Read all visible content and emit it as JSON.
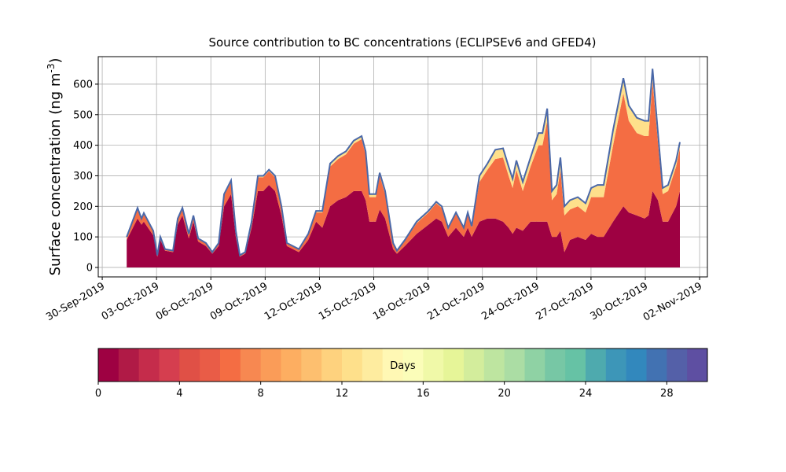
{
  "chart_data": {
    "type": "stacked_area",
    "title": "Source contribution to BC concentrations (ECLIPSEv6 and GFED4)",
    "ylabel": "Surface concentration (ng m$^{-3}$)",
    "x": [
      1.35,
      1.95,
      2.17,
      2.3,
      2.82,
      3.04,
      3.21,
      3.47,
      3.91,
      4.17,
      4.43,
      4.78,
      5.04,
      5.3,
      5.73,
      6.08,
      6.43,
      6.73,
      7.12,
      7.38,
      7.6,
      7.9,
      8.25,
      8.6,
      8.9,
      9.21,
      9.55,
      9.9,
      10.2,
      10.86,
      11.38,
      11.81,
      12.16,
      12.59,
      13.03,
      13.46,
      13.89,
      14.33,
      14.55,
      14.76,
      15.11,
      15.33,
      15.63,
      16.07,
      16.28,
      16.72,
      17.37,
      18.02,
      18.45,
      18.76,
      19.11,
      19.54,
      19.97,
      20.19,
      20.41,
      20.84,
      21.28,
      21.71,
      22.14,
      22.45,
      22.67,
      22.88,
      23.23,
      23.66,
      24.1,
      24.32,
      24.58,
      24.84,
      25.1,
      25.31,
      25.53,
      25.84,
      26.27,
      26.7,
      27.01,
      27.36,
      27.7,
      28.22,
      28.79,
      29.09,
      29.53,
      29.96,
      30.18,
      30.4,
      30.7,
      30.96,
      31.26,
      31.7,
      31.91
    ],
    "series": [
      {
        "color": "#9e0142",
        "values": [
          90,
          160,
          140,
          150,
          105,
          35,
          90,
          55,
          50,
          140,
          170,
          95,
          150,
          85,
          70,
          45,
          70,
          200,
          240,
          100,
          35,
          45,
          130,
          250,
          250,
          270,
          250,
          170,
          70,
          50,
          90,
          150,
          130,
          200,
          220,
          230,
          250,
          250,
          220,
          150,
          150,
          190,
          160,
          60,
          45,
          70,
          110,
          140,
          160,
          150,
          100,
          130,
          100,
          130,
          100,
          150,
          160,
          160,
          150,
          130,
          110,
          130,
          120,
          150,
          150,
          150,
          150,
          100,
          100,
          120,
          50,
          90,
          100,
          90,
          110,
          100,
          100,
          150,
          200,
          180,
          170,
          160,
          170,
          250,
          220,
          150,
          150,
          200,
          250
        ]
      },
      {
        "color": "#f46d43",
        "values": [
          8,
          30,
          17,
          25,
          13,
          4,
          8,
          4,
          4,
          17,
          22,
          13,
          17,
          8,
          8,
          4,
          8,
          35,
          40,
          17,
          4,
          4,
          17,
          45,
          45,
          45,
          45,
          27,
          8,
          8,
          17,
          30,
          50,
          130,
          135,
          140,
          155,
          170,
          150,
          80,
          80,
          110,
          80,
          17,
          8,
          17,
          35,
          40,
          50,
          45,
          27,
          45,
          27,
          45,
          32,
          130,
          160,
          195,
          210,
          170,
          150,
          190,
          130,
          180,
          250,
          250,
          330,
          120,
          140,
          200,
          120,
          100,
          100,
          90,
          120,
          130,
          130,
          250,
          370,
          300,
          270,
          270,
          260,
          360,
          190,
          90,
          100,
          130,
          140
        ]
      },
      {
        "color": "#fee08b",
        "values": [
          2,
          5,
          3,
          3,
          2,
          1,
          2,
          1,
          1,
          3,
          3,
          2,
          3,
          2,
          2,
          1,
          2,
          5,
          5,
          3,
          1,
          1,
          3,
          5,
          5,
          5,
          5,
          3,
          2,
          2,
          3,
          5,
          5,
          10,
          10,
          10,
          10,
          10,
          10,
          10,
          10,
          10,
          10,
          3,
          2,
          3,
          5,
          5,
          5,
          5,
          3,
          5,
          3,
          5,
          3,
          20,
          20,
          30,
          30,
          30,
          30,
          30,
          30,
          30,
          40,
          40,
          40,
          30,
          30,
          40,
          30,
          30,
          30,
          30,
          30,
          40,
          40,
          50,
          50,
          50,
          50,
          50,
          50,
          40,
          30,
          20,
          20,
          20,
          20
        ]
      }
    ],
    "edge_color": "#4a68a8",
    "xlim": [
      -0.22,
      33.43
    ],
    "xticks": [
      {
        "value": 0,
        "label": "30-Sep-2019"
      },
      {
        "value": 3,
        "label": "03-Oct-2019"
      },
      {
        "value": 6,
        "label": "06-Oct-2019"
      },
      {
        "value": 9,
        "label": "09-Oct-2019"
      },
      {
        "value": 12,
        "label": "12-Oct-2019"
      },
      {
        "value": 15,
        "label": "15-Oct-2019"
      },
      {
        "value": 18,
        "label": "18-Oct-2019"
      },
      {
        "value": 21,
        "label": "21-Oct-2019"
      },
      {
        "value": 24,
        "label": "24-Oct-2019"
      },
      {
        "value": 27,
        "label": "27-Oct-2019"
      },
      {
        "value": 30,
        "label": "30-Oct-2019"
      },
      {
        "value": 33,
        "label": "02-Nov-2019"
      }
    ],
    "ylim": [
      -31,
      690
    ],
    "yticks": [
      0,
      100,
      200,
      300,
      400,
      500,
      600
    ],
    "grid": true,
    "colorbar": {
      "label": "Days",
      "lim": [
        0,
        30
      ],
      "ticks": [
        0,
        4,
        8,
        12,
        16,
        20,
        24,
        28
      ],
      "colors": [
        "#9e0142",
        "#b01a46",
        "#c52c4b",
        "#d53e4f",
        "#e05046",
        "#e95c47",
        "#f46d43",
        "#f78851",
        "#fa9c58",
        "#fdae61",
        "#fdbf6f",
        "#fed27e",
        "#fee08b",
        "#feec9f",
        "#fff8b4",
        "#fbfdb9",
        "#f0f9a8",
        "#e6f598",
        "#d3ed9c",
        "#bee5a0",
        "#abdda4",
        "#8fd2a4",
        "#77c7a5",
        "#66c2a5",
        "#4eaaae",
        "#3d96b8",
        "#3288bd",
        "#4272b2",
        "#5460a8",
        "#5e4fa2"
      ]
    }
  }
}
